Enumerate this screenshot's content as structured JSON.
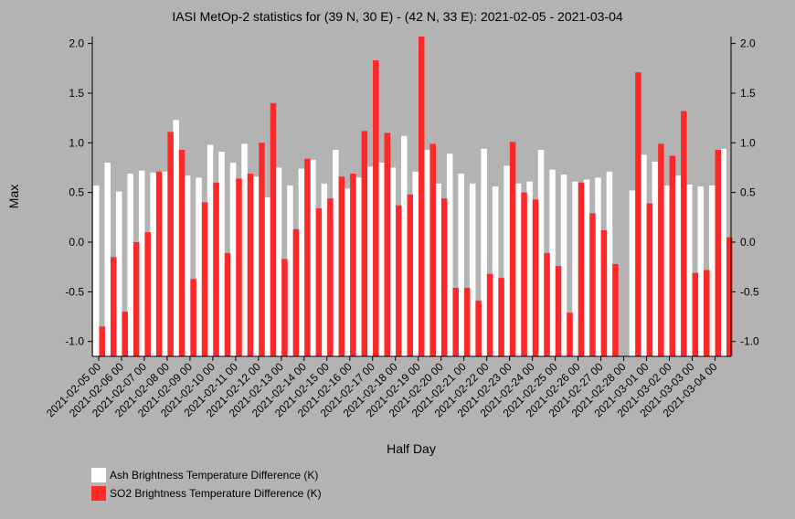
{
  "chart_data": {
    "type": "bar",
    "title": "IASI MetOp-2 statistics for (39 N, 30 E) - (42 N, 33 E): 2021-02-05 - 2021-03-04",
    "xlabel": "Half Day",
    "ylabel": "Max",
    "ylim": [
      -1.15,
      2.07
    ],
    "yticks": [
      "2.0",
      "1.5",
      "1.0",
      "0.5",
      "0.0",
      "-0.5",
      "-1.0"
    ],
    "ytick_values": [
      2.0,
      1.5,
      1.0,
      0.5,
      0.0,
      -0.5,
      -1.0
    ],
    "tick_labels": [
      "2021-02-05 00",
      "2021-02-06 00",
      "2021-02-07 00",
      "2021-02-08 00",
      "2021-02-09 00",
      "2021-02-10 00",
      "2021-02-11 00",
      "2021-02-12 00",
      "2021-02-13 00",
      "2021-02-14 00",
      "2021-02-15 00",
      "2021-02-16 00",
      "2021-02-17 00",
      "2021-02-18 00",
      "2021-02-19 00",
      "2021-02-20 00",
      "2021-02-21 00",
      "2021-02-22 00",
      "2021-02-23 00",
      "2021-02-24 00",
      "2021-02-25 00",
      "2021-02-26 00",
      "2021-02-27 00",
      "2021-02-28 00",
      "2021-03-01 00",
      "2021-03-02 00",
      "2021-03-03 00",
      "2021-03-04 00"
    ],
    "grid": false,
    "legend": "bottom-left",
    "series": [
      {
        "name": "Ash Brightness Temperature Difference (K)",
        "color": "#ffffff",
        "values": [
          0.57,
          0.8,
          0.51,
          0.69,
          0.72,
          0.7,
          0.71,
          1.23,
          0.67,
          0.65,
          0.98,
          0.91,
          0.8,
          0.99,
          0.66,
          0.45,
          0.75,
          0.57,
          0.74,
          0.83,
          0.59,
          0.93,
          0.54,
          0.65,
          0.76,
          0.8,
          0.75,
          1.07,
          0.71,
          0.93,
          0.59,
          0.89,
          0.69,
          0.59,
          0.94,
          0.56,
          0.77,
          0.59,
          0.61,
          0.93,
          0.73,
          0.68,
          0.61,
          0.63,
          0.65,
          0.71,
          null,
          0.52,
          0.88,
          0.81,
          0.57,
          0.67,
          0.58,
          0.56,
          0.57,
          0.94
        ]
      },
      {
        "name": "SO2 Brightness Temperature Difference (K)",
        "color": "#ff2828",
        "values": [
          -0.85,
          -0.15,
          -0.7,
          0.0,
          0.1,
          0.71,
          1.11,
          0.93,
          -0.37,
          0.4,
          0.6,
          -0.11,
          0.64,
          0.69,
          1.0,
          1.4,
          -0.17,
          0.13,
          0.84,
          0.34,
          0.44,
          0.66,
          0.69,
          1.12,
          1.83,
          1.1,
          0.37,
          0.48,
          2.07,
          0.99,
          0.44,
          -0.46,
          -0.46,
          -0.59,
          -0.32,
          -0.36,
          1.01,
          0.5,
          0.43,
          -0.11,
          -0.24,
          -0.71,
          0.6,
          0.29,
          0.12,
          -0.22,
          null,
          1.71,
          0.39,
          0.99,
          0.87,
          1.32,
          -0.31,
          -0.28,
          0.93,
          0.05
        ]
      }
    ]
  }
}
